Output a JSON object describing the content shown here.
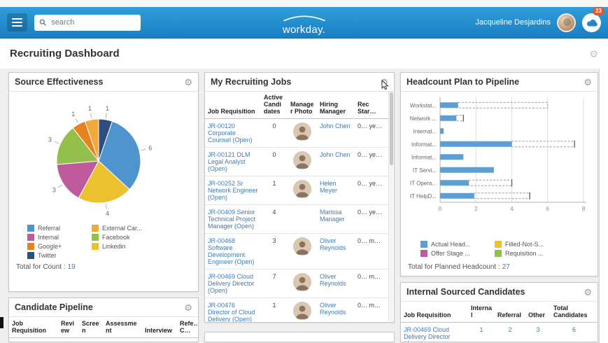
{
  "icons": {
    "gear": "⚙"
  },
  "header": {
    "search_placeholder": "search",
    "logo_text": "workday.",
    "user_name": "Jacqueline Desjardins",
    "inbox_badge": "23"
  },
  "page": {
    "title": "Recruiting Dashboard"
  },
  "cards": {
    "source_effectiveness": {
      "title": "Source Effectiveness",
      "total_label": "Total for Count :",
      "total_value": "19"
    },
    "candidate_pipeline": {
      "title": "Candidate Pipeline",
      "columns": [
        "Job Requisition",
        "Review",
        "Screen",
        "Assessment",
        "Interview",
        "Refe… C…"
      ]
    },
    "my_recruiting_jobs": {
      "title": "My Recruiting Jobs",
      "columns": [
        "Job Requisition",
        "Active Candidates",
        "Manager Photo",
        "Hiring Manager",
        "Rec Star…"
      ],
      "rows": [
        {
          "requisition": "JR-00120 Corporate Counsel (Open)",
          "active_candidates": "0",
          "has_photo": true,
          "hiring_manager": "John Chen",
          "rec_start": "0… ye…"
        },
        {
          "requisition": "JR-00121 DLM Legal Analyst (Open)",
          "active_candidates": "0",
          "has_photo": true,
          "hiring_manager": "John Chen",
          "rec_start": "0… ye…"
        },
        {
          "requisition": "JR-00252 Sr Network Engineer (Open)",
          "active_candidates": "1",
          "has_photo": true,
          "hiring_manager": "Helen Meyer",
          "rec_start": "0… ye…"
        },
        {
          "requisition": "JR-00409 Senior Technical Project Manager (Open)",
          "active_candidates": "4",
          "has_photo": false,
          "hiring_manager": "Marissa Manager",
          "rec_start": "0… ye…"
        },
        {
          "requisition": "JR-00468 Software Development Engineer (Open)",
          "active_candidates": "3",
          "has_photo": true,
          "hiring_manager": "Oliver Reynolds",
          "rec_start": "0… m…"
        },
        {
          "requisition": "JR-00469 Cloud Delivery Director (Open)",
          "active_candidates": "7",
          "has_photo": true,
          "hiring_manager": "Oliver Reynolds",
          "rec_start": "0… m…"
        },
        {
          "requisition": "JR-00476 Director of Cloud Delivery (Open)",
          "active_candidates": "1",
          "has_photo": true,
          "hiring_manager": "Oliver Reynolds",
          "rec_start": "0… m…"
        }
      ]
    },
    "headcount_plan": {
      "title": "Headcount Plan to Pipeline",
      "total_label": "Total for Planned Headcount :",
      "total_value": "27"
    },
    "internal_sourced": {
      "title": "Internal Sourced Candidates",
      "columns": [
        "Job Requisition",
        "Internal",
        "Referral",
        "Other",
        "Total Candidates"
      ],
      "rows": [
        {
          "requisition": "JR-00469 Cloud Delivery Director (Open)",
          "internal": "1",
          "referral": "2",
          "other": "3",
          "total": "6"
        }
      ]
    }
  },
  "chart_data": [
    {
      "type": "pie",
      "title": "Source Effectiveness",
      "total": 19,
      "slices": [
        {
          "label": "Twitter",
          "value": 1,
          "color": "#2e4d80"
        },
        {
          "label": "Referral",
          "value": 6,
          "color": "#4e94ce"
        },
        {
          "label": "Linkedin",
          "value": 4,
          "color": "#ecc02f"
        },
        {
          "label": "Internal",
          "value": 3,
          "color": "#bf5b9d"
        },
        {
          "label": "Facebook",
          "value": 3,
          "color": "#93c04d"
        },
        {
          "label": "Google+",
          "value": 1,
          "color": "#e8821e"
        },
        {
          "label": "External Career Site",
          "value": 1,
          "color": "#f2a93b"
        }
      ],
      "legend": [
        {
          "label": "Referral",
          "color": "#4e94ce"
        },
        {
          "label": "Internal",
          "color": "#bf5b9d"
        },
        {
          "label": "Google+",
          "color": "#e8821e"
        },
        {
          "label": "Twitter",
          "color": "#2e4d80"
        },
        {
          "label": "External Car...",
          "color": "#f2a93b"
        },
        {
          "label": "Facebook",
          "color": "#93c04d"
        },
        {
          "label": "Linkedin",
          "color": "#ecc02f"
        }
      ]
    },
    {
      "type": "bar",
      "orientation": "horizontal",
      "title": "Headcount Plan to Pipeline",
      "categories": [
        "Workstat...",
        "Network ...",
        "Internal...",
        "Informat...",
        "Informat...",
        "IT Servi...",
        "IT Opera...",
        "IT HelpD..."
      ],
      "series": [
        {
          "name": "Actual Head...",
          "color": "#5b9fd6",
          "values": [
            1,
            0.9,
            0.2,
            4,
            1.3,
            3,
            1.6,
            1.9
          ]
        },
        {
          "name": "Requisition ...",
          "color": "#93c04d",
          "style": "dashed-plan",
          "values": [
            6,
            1.3,
            0,
            7.5,
            0,
            0,
            4,
            5
          ]
        }
      ],
      "caps": [
        false,
        true,
        false,
        true,
        false,
        false,
        true,
        true
      ],
      "xlim": [
        0,
        8
      ],
      "xticks": [
        0,
        2,
        4,
        6,
        8
      ],
      "legend": [
        {
          "label": "Actual Head...",
          "color": "#5b9fd6"
        },
        {
          "label": "Offer Stage ...",
          "color": "#bf5b9d"
        },
        {
          "label": "Filled-Not-S...",
          "color": "#ecc02f"
        },
        {
          "label": "Requisition ...",
          "color": "#93c04d"
        }
      ],
      "total": 27
    }
  ]
}
